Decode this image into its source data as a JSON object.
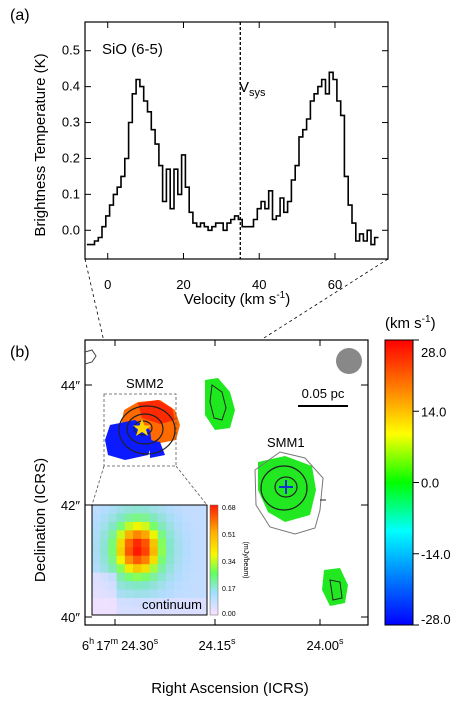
{
  "chart_data": [
    {
      "type": "line",
      "panel_label": "(a)",
      "title": "",
      "xlabel": "Velocity (km s",
      "xlabel_sup": "-1",
      "xlabel_tail": ")",
      "ylabel": "Brightness Temperature (K)",
      "xlim": [
        -6,
        74
      ],
      "ylim": [
        -0.08,
        0.58
      ],
      "xticks": [
        0,
        20,
        40,
        60
      ],
      "yticks": [
        0.0,
        0.1,
        0.2,
        0.3,
        0.4,
        0.5
      ],
      "xtick_labels": [
        "0",
        "20",
        "40",
        "60"
      ],
      "ytick_labels": [
        "0.0",
        "0.1",
        "0.2",
        "0.3",
        "0.4",
        "0.5"
      ],
      "annotations": {
        "line_label": "SiO (6-5)",
        "vsys_main": "V",
        "vsys_sub": "sys",
        "vsys_value": 35
      },
      "series": [
        {
          "style": "step",
          "x": [
            -5,
            -4,
            -3,
            -2,
            -1,
            0,
            1,
            2,
            3,
            4,
            5,
            6,
            7,
            8,
            9,
            10,
            11,
            12,
            13,
            14,
            15,
            16,
            17,
            18,
            19,
            20,
            21,
            22,
            23,
            24,
            25,
            26,
            27,
            28,
            29,
            30,
            31,
            32,
            33,
            34,
            35,
            36,
            37,
            38,
            39,
            40,
            41,
            42,
            43,
            44,
            45,
            46,
            47,
            48,
            49,
            50,
            51,
            52,
            53,
            54,
            55,
            56,
            57,
            58,
            59,
            60,
            61,
            62,
            63,
            64,
            65,
            66,
            67,
            68,
            69,
            70,
            71
          ],
          "values": [
            -0.04,
            -0.04,
            -0.03,
            -0.02,
            0.01,
            0.04,
            0.07,
            0.1,
            0.12,
            0.15,
            0.2,
            0.3,
            0.38,
            0.42,
            0.4,
            0.36,
            0.33,
            0.28,
            0.24,
            0.18,
            0.08,
            0.17,
            0.06,
            0.17,
            0.1,
            0.21,
            0.12,
            0.05,
            0.02,
            0.01,
            0.02,
            0.01,
            0.0,
            0.01,
            0.02,
            0.02,
            0.0,
            0.02,
            0.03,
            0.04,
            0.03,
            0.01,
            0.01,
            0.01,
            0.03,
            0.06,
            0.08,
            0.06,
            0.11,
            0.03,
            0.04,
            0.09,
            0.05,
            0.08,
            0.14,
            0.18,
            0.26,
            0.28,
            0.31,
            0.36,
            0.38,
            0.4,
            0.42,
            0.38,
            0.44,
            0.42,
            0.36,
            0.32,
            0.15,
            0.07,
            0.02,
            -0.03,
            -0.01,
            -0.03,
            0.0,
            -0.04,
            -0.02
          ]
        }
      ]
    },
    {
      "type": "heatmap",
      "panel_label": "(b)",
      "title": "",
      "xlabel": "Right Ascension (ICRS)",
      "ylabel": "Declination (ICRS)",
      "xtick_labels": [
        {
          "h": "6",
          "hs": "h",
          "m": "17",
          "ms": "m",
          "s": "24.30",
          "ss": "s"
        },
        {
          "s": "24.15",
          "ss": "s"
        },
        {
          "s": "24.00",
          "ss": "s"
        }
      ],
      "ytick_labels": [
        {
          "v": "44",
          "u": "″"
        },
        {
          "v": "42",
          "u": "″"
        },
        {
          "v": "40",
          "u": "″"
        }
      ],
      "yticks_arcsec": [
        44,
        42,
        40
      ],
      "ylim_arcsec": [
        39.6,
        45.0
      ],
      "sources": [
        {
          "label": "SMM2",
          "marker": "star",
          "marker_color": "#ffd700"
        },
        {
          "label": "SMM1",
          "marker": "cross",
          "marker_color": "#1030d0"
        }
      ],
      "scalebar_label": "0.05 pc",
      "beam": "filled-circle",
      "colorbar": {
        "label": "(km s",
        "label_sup": "-1",
        "label_tail": ")",
        "ticks": [
          28.0,
          14.0,
          0.0,
          -14.0,
          -28.0
        ],
        "tick_labels": [
          "28.0",
          "14.0",
          "0.0",
          "-14.0",
          "-28.0"
        ],
        "colors_top_to_bottom": [
          "#ff0000",
          "#ff8000",
          "#ffff00",
          "#00ff00",
          "#00ffff",
          "#0080ff",
          "#0000ff"
        ]
      },
      "inset": {
        "label": "continuum",
        "colorbar_unit": "(mJy/beam)",
        "colorbar_ticks": [
          "0.68",
          "0.51",
          "0.34",
          "0.17",
          "0.00"
        ],
        "peak_value": 0.68
      }
    }
  ]
}
